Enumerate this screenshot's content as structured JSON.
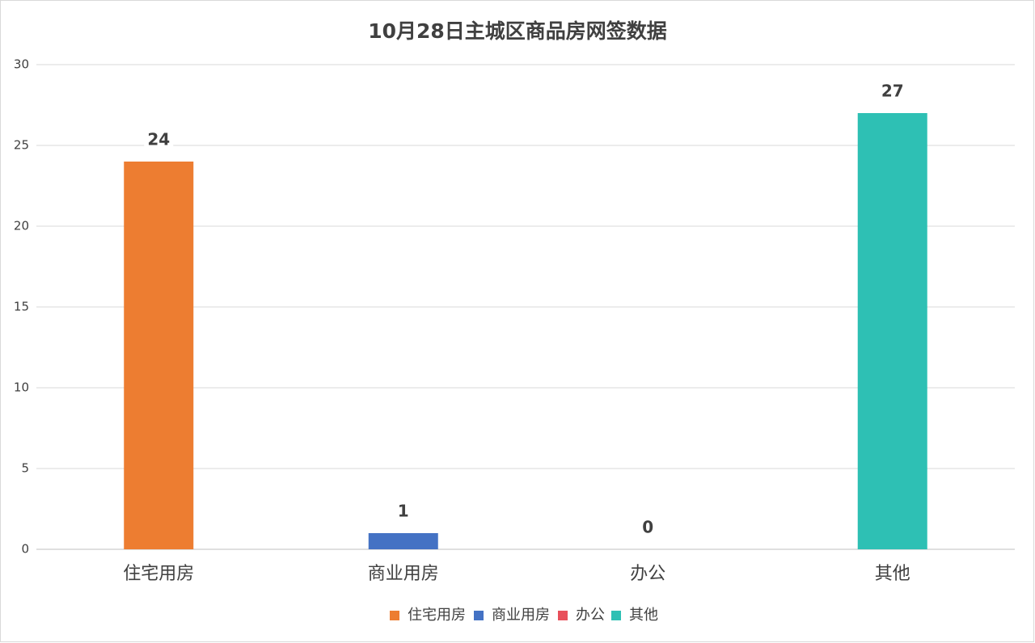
{
  "chart_data": {
    "type": "bar",
    "title": "10月28日主城区商品房网签数据",
    "categories": [
      "住宅用房",
      "商业用房",
      "办公",
      "其他"
    ],
    "values": [
      24,
      1,
      0,
      27
    ],
    "colors": [
      "#ed7d31",
      "#4472c4",
      "#e8505b",
      "#2ec0b4"
    ],
    "ylim": [
      0,
      30
    ],
    "yticks": [
      0,
      5,
      10,
      15,
      20,
      25,
      30
    ],
    "grid": true,
    "legend": "bottom",
    "data_labels": true
  }
}
